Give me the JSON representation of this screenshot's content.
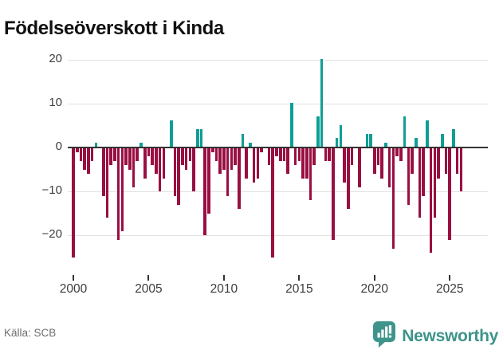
{
  "title": "Födelseöverskott i Kinda",
  "source": "Källa: SCB",
  "branding": {
    "wordmark": "Newsworthy",
    "color": "#3e948b",
    "icon": "bar-chart-speech-bubble-icon"
  },
  "chart_data": {
    "type": "bar",
    "title": "Födelseöverskott i Kinda",
    "xlabel": "",
    "ylabel": "",
    "period": "quarterly",
    "x_start": "2000-Q1",
    "x_end": "2025-Q4",
    "x_tick_years": [
      2000,
      2005,
      2010,
      2015,
      2020,
      2025
    ],
    "x_tick_labels": [
      "2000",
      "2005",
      "2010",
      "2015",
      "2020",
      "2025"
    ],
    "y_gridlines": [
      20,
      10,
      0,
      -10,
      -20
    ],
    "y_tick_labels": [
      "20",
      "10",
      "0",
      "−10",
      "−20"
    ],
    "ylim": [
      -27,
      21
    ],
    "grid": true,
    "legend": false,
    "colors": {
      "positive": "#0f9e96",
      "negative": "#990f42",
      "axis": "#333333",
      "gridline": "#e2e2e2"
    },
    "series": [
      {
        "name": "Födelseöverskott",
        "values": [
          -25,
          -1,
          -3,
          -5,
          -6,
          -3,
          1,
          0,
          -11,
          -16,
          -4,
          -3,
          -21,
          -19,
          -4,
          -5,
          -9,
          -3,
          1,
          -7,
          -2,
          -4,
          -6,
          -10,
          -7,
          0,
          6,
          -11,
          -13,
          -4,
          -5,
          -3,
          -10,
          4,
          4,
          -20,
          -15,
          -1,
          -3,
          -6,
          -5,
          -11,
          -5,
          -4,
          -14,
          3,
          -7,
          1,
          -8,
          -7,
          -1,
          0,
          -4,
          -25,
          -2,
          -3,
          -3,
          -6,
          10,
          -4,
          -3,
          -7,
          -7,
          -12,
          -4,
          7,
          20,
          -3,
          -3,
          -21,
          2,
          5,
          -8,
          -14,
          -4,
          0,
          -9,
          0,
          3,
          3,
          -6,
          -4,
          -7,
          1,
          -9,
          -23,
          -2,
          -3,
          7,
          -13,
          -6,
          2,
          -16,
          -11,
          6,
          -24,
          -16,
          -7,
          3,
          -6,
          -21,
          4,
          -6,
          -10
        ]
      }
    ]
  }
}
